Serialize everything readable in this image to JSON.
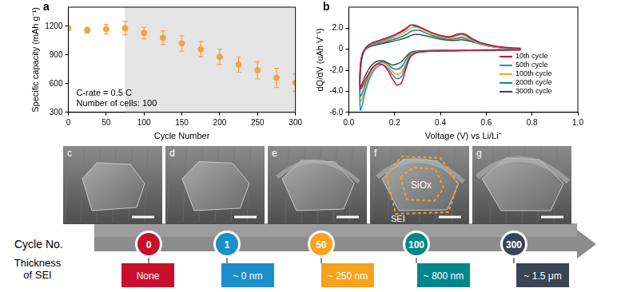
{
  "chart_data": [
    {
      "panel": "a",
      "type": "scatter",
      "x_label": "Cycle Number",
      "y_label": "Specific capacity (mAh g⁻¹)",
      "x": [
        0,
        25,
        50,
        75,
        100,
        125,
        150,
        175,
        200,
        225,
        250,
        275,
        300
      ],
      "values": [
        1180,
        1160,
        1170,
        1180,
        1130,
        1080,
        1020,
        960,
        880,
        800,
        740,
        660,
        610
      ],
      "errors": [
        20,
        30,
        50,
        70,
        60,
        70,
        80,
        80,
        80,
        80,
        90,
        100,
        90
      ],
      "color": "#f4a340",
      "marker": "circle",
      "xlim": [
        0,
        300
      ],
      "xticks": [
        0,
        50,
        100,
        150,
        200,
        250,
        300
      ],
      "ylim": [
        300,
        1400
      ],
      "yticks": [
        300,
        600,
        900,
        1200
      ],
      "shaded_x": [
        75,
        300
      ],
      "annotations": [
        "C-rate = 0.5 C",
        "Number of cells: 100"
      ],
      "grid": false
    },
    {
      "panel": "b",
      "type": "line",
      "x_label": "Voltage (V) vs Li/Li⁺",
      "y_label": "dQ/dV (uAh V⁻¹)",
      "series": [
        {
          "name": "10th cycle",
          "color": "#c8102e",
          "x": [
            0.75,
            0.6,
            0.45,
            0.35,
            0.3,
            0.27,
            0.25,
            0.23,
            0.21,
            0.19,
            0.17,
            0.15,
            0.13,
            0.11,
            0.09,
            0.07,
            0.06,
            0.05,
            0.05,
            0.06,
            0.08,
            0.1,
            0.14,
            0.18,
            0.22,
            0.25,
            0.27,
            0.29,
            0.31,
            0.33,
            0.36,
            0.4,
            0.44,
            0.47,
            0.49,
            0.51,
            0.54,
            0.58,
            0.64,
            0.7,
            0.75
          ],
          "values": [
            -0.05,
            -0.1,
            -0.15,
            -0.2,
            -0.3,
            -0.7,
            -1.8,
            -3.2,
            -3.4,
            -2.8,
            -2.0,
            -1.5,
            -1.4,
            -1.6,
            -2.2,
            -3.0,
            -3.5,
            -3.8,
            -2.0,
            -0.4,
            0.3,
            0.6,
            0.9,
            1.2,
            1.6,
            2.0,
            2.3,
            2.2,
            2.1,
            1.9,
            1.6,
            1.3,
            1.2,
            1.4,
            1.5,
            1.4,
            1.0,
            0.6,
            0.3,
            0.15,
            0.1
          ]
        },
        {
          "name": "50th cycle",
          "color": "#1f8ecd",
          "x": [
            0.75,
            0.6,
            0.45,
            0.35,
            0.3,
            0.27,
            0.25,
            0.23,
            0.21,
            0.19,
            0.17,
            0.15,
            0.13,
            0.11,
            0.09,
            0.07,
            0.06,
            0.05,
            0.05,
            0.06,
            0.08,
            0.1,
            0.14,
            0.18,
            0.22,
            0.25,
            0.27,
            0.29,
            0.31,
            0.33,
            0.36,
            0.4,
            0.44,
            0.47,
            0.49,
            0.51,
            0.54,
            0.58,
            0.64,
            0.7,
            0.75
          ],
          "values": [
            -0.05,
            -0.1,
            -0.15,
            -0.2,
            -0.3,
            -0.6,
            -1.5,
            -2.6,
            -2.8,
            -2.4,
            -1.8,
            -1.5,
            -1.6,
            -2.0,
            -2.8,
            -4.2,
            -5.2,
            -5.8,
            -2.5,
            -0.6,
            0.2,
            0.5,
            0.8,
            1.1,
            1.5,
            1.9,
            2.3,
            2.3,
            2.1,
            1.9,
            1.6,
            1.3,
            1.1,
            1.3,
            1.4,
            1.3,
            0.9,
            0.5,
            0.25,
            0.12,
            0.08
          ]
        },
        {
          "name": "100th cycle",
          "color": "#f6a21c",
          "x": [
            0.75,
            0.6,
            0.45,
            0.35,
            0.3,
            0.27,
            0.25,
            0.23,
            0.21,
            0.19,
            0.17,
            0.15,
            0.13,
            0.11,
            0.09,
            0.07,
            0.06,
            0.05,
            0.05,
            0.06,
            0.08,
            0.1,
            0.14,
            0.18,
            0.22,
            0.25,
            0.27,
            0.29,
            0.31,
            0.33,
            0.36,
            0.4,
            0.44,
            0.47,
            0.49,
            0.51,
            0.54,
            0.58,
            0.64,
            0.7,
            0.75
          ],
          "values": [
            -0.05,
            -0.1,
            -0.12,
            -0.18,
            -0.25,
            -0.5,
            -1.3,
            -2.2,
            -2.4,
            -2.1,
            -1.6,
            -1.3,
            -1.4,
            -1.8,
            -2.6,
            -3.8,
            -4.6,
            -5.0,
            -2.3,
            -0.6,
            0.2,
            0.45,
            0.7,
            1.0,
            1.3,
            1.7,
            2.0,
            2.1,
            2.0,
            1.8,
            1.5,
            1.2,
            1.0,
            1.1,
            1.2,
            1.1,
            0.8,
            0.45,
            0.2,
            0.1,
            0.06
          ]
        },
        {
          "name": "200th cycle",
          "color": "#008b8b",
          "x": [
            0.75,
            0.6,
            0.45,
            0.35,
            0.3,
            0.27,
            0.25,
            0.23,
            0.21,
            0.19,
            0.17,
            0.15,
            0.13,
            0.11,
            0.09,
            0.07,
            0.06,
            0.05,
            0.05,
            0.06,
            0.08,
            0.1,
            0.14,
            0.18,
            0.22,
            0.25,
            0.27,
            0.29,
            0.31,
            0.33,
            0.36,
            0.4,
            0.44,
            0.47,
            0.49,
            0.51,
            0.54,
            0.58,
            0.64,
            0.7,
            0.75
          ],
          "values": [
            -0.04,
            -0.08,
            -0.1,
            -0.15,
            -0.22,
            -0.4,
            -1.0,
            -1.7,
            -1.9,
            -1.8,
            -1.4,
            -1.2,
            -1.3,
            -1.6,
            -2.3,
            -3.4,
            -4.1,
            -4.5,
            -2.0,
            -0.5,
            0.15,
            0.4,
            0.6,
            0.85,
            1.1,
            1.4,
            1.7,
            1.8,
            1.8,
            1.6,
            1.35,
            1.1,
            0.95,
            1.0,
            1.1,
            1.0,
            0.75,
            0.45,
            0.2,
            0.1,
            0.05
          ]
        },
        {
          "name": "300th cycle",
          "color": "#3b4456",
          "x": [
            0.75,
            0.6,
            0.45,
            0.35,
            0.3,
            0.27,
            0.25,
            0.23,
            0.21,
            0.19,
            0.17,
            0.15,
            0.13,
            0.11,
            0.09,
            0.07,
            0.06,
            0.05,
            0.05,
            0.06,
            0.08,
            0.1,
            0.14,
            0.18,
            0.22,
            0.25,
            0.27,
            0.29,
            0.31,
            0.33,
            0.36,
            0.4,
            0.44,
            0.47,
            0.49,
            0.51,
            0.54,
            0.58,
            0.64,
            0.7,
            0.75
          ],
          "values": [
            -0.03,
            -0.06,
            -0.08,
            -0.12,
            -0.18,
            -0.3,
            -0.7,
            -1.2,
            -1.4,
            -1.5,
            -1.3,
            -1.1,
            -1.1,
            -1.3,
            -1.8,
            -2.6,
            -3.2,
            -3.6,
            -1.6,
            -0.4,
            0.1,
            0.3,
            0.5,
            0.7,
            0.9,
            1.1,
            1.3,
            1.4,
            1.4,
            1.3,
            1.15,
            0.95,
            0.85,
            0.85,
            0.9,
            0.85,
            0.7,
            0.45,
            0.2,
            0.1,
            0.05
          ]
        }
      ],
      "xlim": [
        0,
        1
      ],
      "xticks": [
        {
          "value": 0,
          "label": "0.0"
        },
        0.2,
        0.4,
        0.6,
        0.8,
        {
          "value": 1,
          "label": "1.0"
        }
      ],
      "ylim": [
        -6,
        4
      ],
      "yticks": [
        {
          "value": 2,
          "label": "2.0"
        },
        0,
        {
          "value": -2,
          "label": "-2.0"
        },
        {
          "value": -4,
          "label": "-4.0"
        },
        {
          "value": -6,
          "label": "-6.0"
        }
      ],
      "legend": "right",
      "grid": false
    }
  ],
  "image_panels": [
    {
      "label": "c"
    },
    {
      "label": "d"
    },
    {
      "label": "e"
    },
    {
      "label": "f",
      "annotations": [
        "SiOx",
        "SEI"
      ]
    },
    {
      "label": "g"
    }
  ],
  "timeline": {
    "cycle_label": "Cycle No.",
    "thickness_label": "Thickness of SEI",
    "steps": [
      {
        "cycle": 0,
        "sei": "None",
        "color": "#c8102e"
      },
      {
        "cycle": 1,
        "sei": "~ 0 nm",
        "color": "#1a8fc9"
      },
      {
        "cycle": 50,
        "sei": "~ 250 nm",
        "color": "#f6a21c"
      },
      {
        "cycle": 100,
        "sei": "~ 800 nm",
        "color": "#00868b"
      },
      {
        "cycle": 300,
        "sei": "~ 1.5 μm",
        "color": "#3b4456"
      }
    ]
  }
}
